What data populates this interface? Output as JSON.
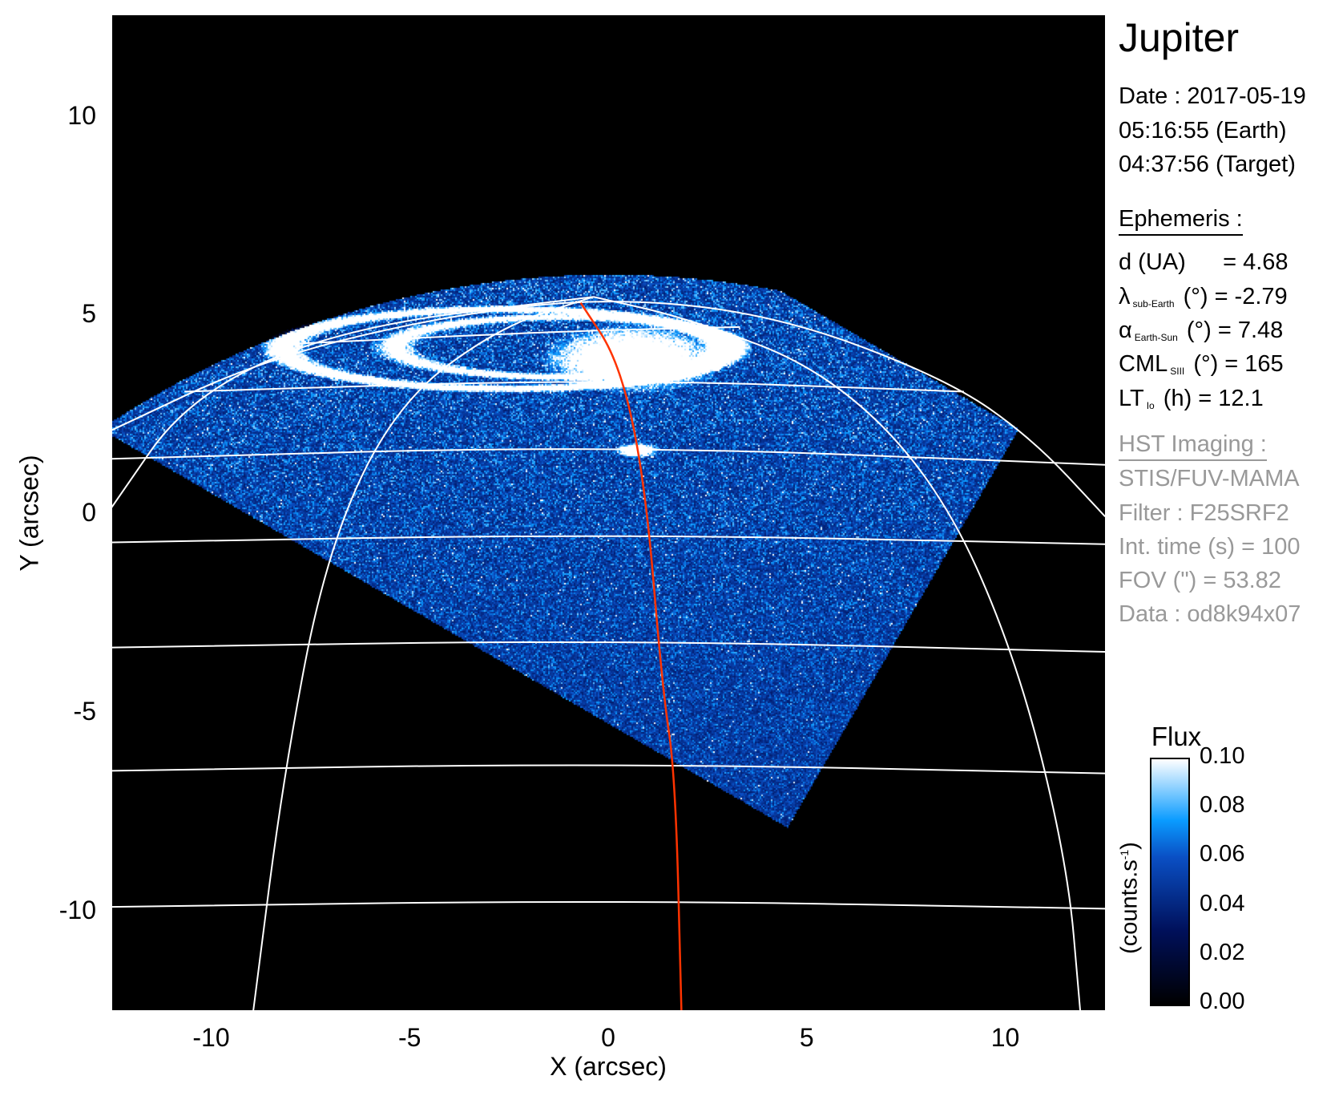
{
  "panel": {
    "title": "Jupiter",
    "date_line": "Date : 2017-05-19",
    "earth_time": "05:16:55 (Earth)",
    "target_time": "04:37:56 (Target)",
    "ephemeris_header": "Ephemeris :",
    "ephemeris": [
      {
        "sym": "d (UA)",
        "sub": "",
        "rest": "    = 4.68"
      },
      {
        "sym": "λ",
        "sub": "sub-Earth",
        "rest": "(°) = -2.79"
      },
      {
        "sym": "α",
        "sub": "Earth-Sun",
        "rest": "(°) = 7.48"
      },
      {
        "sym": "CML",
        "sub": "SIII",
        "rest": "(°) = 165"
      },
      {
        "sym": "LT",
        "sub": "Io",
        "rest": "(h) = 12.1"
      }
    ],
    "imaging_header": "HST Imaging :",
    "imaging": [
      "STIS/FUV-MAMA",
      "Filter : F25SRF2",
      "Int. time (s) = 100",
      "FOV (\") = 53.82",
      "Data : od8k94x07"
    ]
  },
  "chart_data": {
    "type": "heatmap",
    "xlabel": "X (arcsec)",
    "ylabel": "Y (arcsec)",
    "xlim": [
      -12.5,
      12.5
    ],
    "ylim": [
      -12.5,
      12.5
    ],
    "xticks": [
      "-10",
      "-5",
      "0",
      "5",
      "10"
    ],
    "yticks": [
      "10",
      "5",
      "0",
      "-5",
      "-10"
    ],
    "xtick_values": [
      -10,
      -5,
      0,
      5,
      10
    ],
    "ytick_values": [
      10,
      5,
      0,
      -5,
      -10
    ],
    "grid_color": "#ffffff",
    "meridian_color": "#ff3300",
    "colorbar": {
      "title": "Flux",
      "label": "(counts.s",
      "label_sup": "-1",
      "label_end": ")",
      "range": [
        0.0,
        0.1
      ],
      "ticks": [
        "0.10",
        "0.08",
        "0.06",
        "0.04",
        "0.02",
        "0.00"
      ],
      "tick_values": [
        0.1,
        0.08,
        0.06,
        0.04,
        0.02,
        0.0
      ],
      "colors": [
        "#000000",
        "#00105a",
        "#0a4fc4",
        "#0a9bff",
        "#ffffff"
      ]
    }
  }
}
